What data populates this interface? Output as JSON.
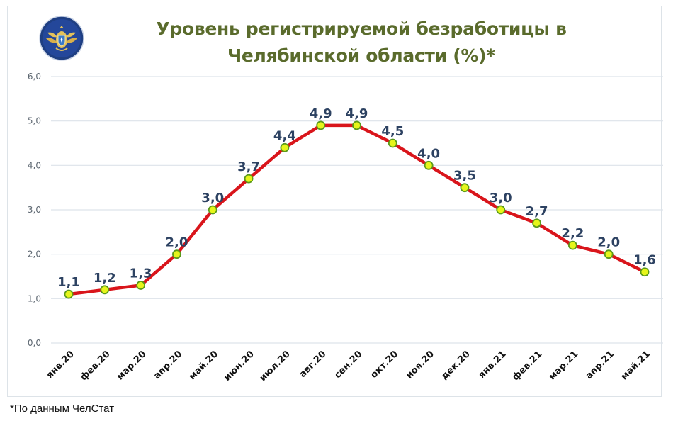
{
  "header": {
    "title_line1": "Уровень регистрируемой безработицы в",
    "title_line2": "Челябинской области (%)*",
    "logo_icon": "double-headed-eagle-emblem-icon"
  },
  "footnote": "*По данным ЧелСтат",
  "colors": {
    "title": "#5a6b2c",
    "line": "#d9151b",
    "marker_fill": "#e6f51a",
    "marker_stroke": "#5a9a1a",
    "data_label": "#2d4262",
    "grid": "#dde3ea"
  },
  "chart_data": {
    "type": "line",
    "title": "Уровень регистрируемой безработицы в Челябинской области (%)*",
    "xlabel": "",
    "ylabel": "",
    "ylim": [
      0,
      6
    ],
    "yticks": [
      "0,0",
      "1,0",
      "2,0",
      "3,0",
      "4,0",
      "5,0",
      "6,0"
    ],
    "grid": true,
    "legend": null,
    "categories": [
      "янв.20",
      "фев.20",
      "мар.20",
      "апр.20",
      "май.20",
      "июн.20",
      "июл.20",
      "авг.20",
      "сен.20",
      "окт.20",
      "ноя.20",
      "дек.20",
      "янв.21",
      "фев.21",
      "мар.21",
      "апр.21",
      "май.21"
    ],
    "series": [
      {
        "name": "Уровень регистрируемой безработицы (%)",
        "values": [
          1.1,
          1.2,
          1.3,
          2.0,
          3.0,
          3.7,
          4.4,
          4.9,
          4.9,
          4.5,
          4.0,
          3.5,
          3.0,
          2.7,
          2.2,
          2.0,
          1.6
        ],
        "labels": [
          "1,1",
          "1,2",
          "1,3",
          "2,0",
          "3,0",
          "3,7",
          "4,4",
          "4,9",
          "4,9",
          "4,5",
          "4,0",
          "3,5",
          "3,0",
          "2,7",
          "2,2",
          "2,0",
          "1,6"
        ]
      }
    ],
    "annotations": [
      "*По данным ЧелСтат"
    ]
  }
}
